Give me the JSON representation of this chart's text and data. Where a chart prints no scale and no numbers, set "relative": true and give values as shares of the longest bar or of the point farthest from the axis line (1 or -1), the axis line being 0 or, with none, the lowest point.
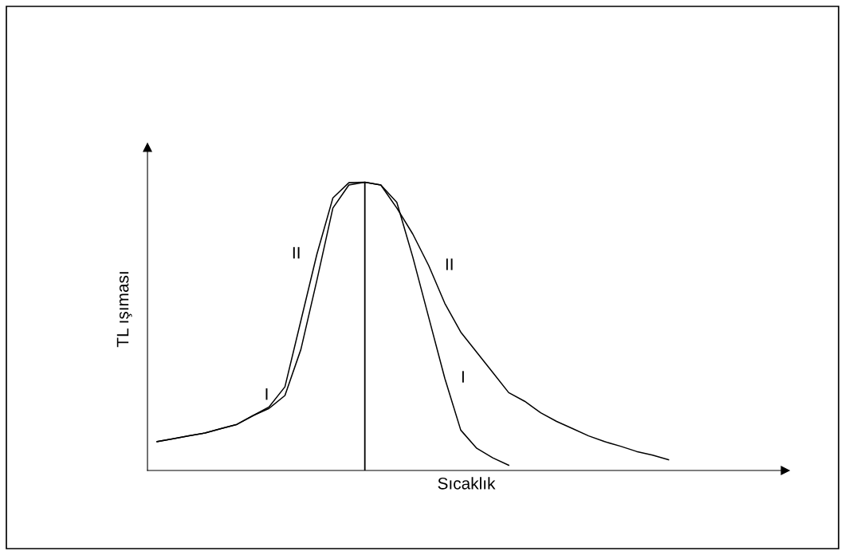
{
  "chart_data": {
    "type": "line",
    "relative": true,
    "xlabel": "Sıcaklık",
    "ylabel": "TL ışıması",
    "categories": [
      null,
      null,
      null,
      null,
      null,
      null,
      null,
      null,
      null,
      null,
      null,
      null,
      null,
      null,
      null,
      null,
      null,
      null,
      null,
      null,
      null,
      null,
      null,
      null,
      null,
      null,
      null,
      null,
      null,
      null,
      null,
      null,
      null
    ],
    "series": [
      {
        "name": "I",
        "color": "#000000",
        "values": [
          0.1,
          0.11,
          0.12,
          0.13,
          0.145,
          0.16,
          0.19,
          0.215,
          0.26,
          0.42,
          0.66,
          0.91,
          0.99,
          1.0,
          0.99,
          0.93,
          0.74,
          0.53,
          0.32,
          0.14,
          0.077,
          0.044,
          0.018,
          null,
          null,
          null,
          null,
          null,
          null,
          null,
          null,
          null,
          null
        ]
      },
      {
        "name": "II",
        "color": "#000000",
        "values": [
          0.1,
          0.11,
          0.12,
          0.13,
          0.145,
          0.16,
          0.19,
          0.22,
          0.29,
          0.52,
          0.75,
          0.945,
          0.998,
          1.0,
          0.99,
          0.91,
          0.82,
          0.71,
          0.58,
          0.48,
          0.41,
          0.34,
          0.27,
          0.24,
          0.2,
          0.17,
          0.145,
          0.12,
          0.1,
          0.084,
          0.066,
          0.053,
          0.037
        ]
      }
    ],
    "legend": false,
    "tick_labels": false
  }
}
